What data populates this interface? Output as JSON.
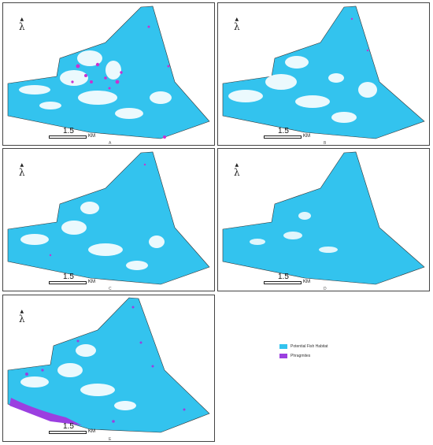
{
  "colors": {
    "habitat": "#33c3ee",
    "phragmites": "#9b3fe0",
    "background": "#ffffff",
    "outline": "#333333"
  },
  "north_symbol": "λ",
  "scale": {
    "value": "1.5",
    "unit": "KM"
  },
  "panels": [
    {
      "id": "A",
      "caption": "A"
    },
    {
      "id": "B",
      "caption": "B"
    },
    {
      "id": "C",
      "caption": "C"
    },
    {
      "id": "D",
      "caption": "D"
    },
    {
      "id": "E",
      "caption": "E"
    }
  ],
  "legend": [
    {
      "label": "Potential Fish Habitat",
      "color": "#33c3ee"
    },
    {
      "label": "Phragmites",
      "color": "#9b3fe0"
    }
  ]
}
